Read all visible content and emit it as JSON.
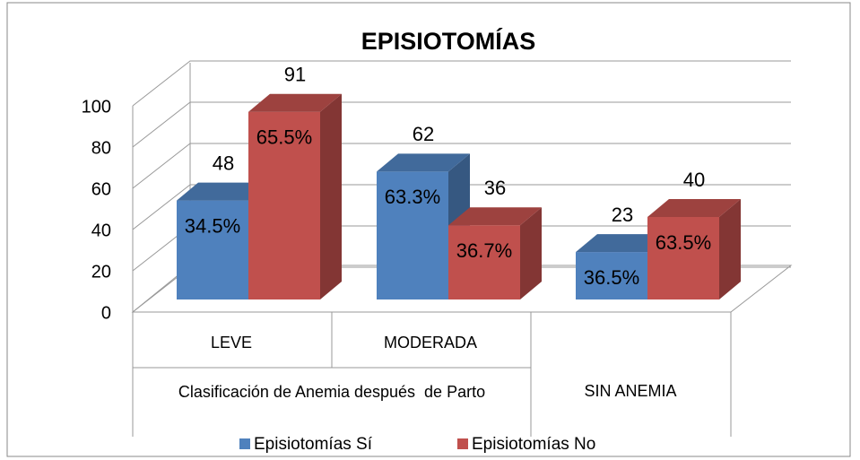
{
  "chart_data": {
    "type": "bar3d",
    "title": "EPISIOTOMÍAS",
    "categories": [
      "LEVE",
      "MODERADA",
      "SIN ANEMIA"
    ],
    "group_label": "Clasificación de Anemia después  de Parto",
    "series": [
      {
        "name": "Episiotomías Sí",
        "color": "#4f81bd",
        "values": [
          48,
          62,
          23
        ],
        "inside_labels": [
          "34.5%",
          "63.3%",
          "36.5%"
        ]
      },
      {
        "name": "Episiotomías No",
        "color": "#c0504d",
        "values": [
          91,
          36,
          40
        ],
        "inside_labels": [
          "65.5%",
          "36.7%",
          "63.5%"
        ]
      }
    ],
    "ylim": [
      0,
      100
    ],
    "yticks": [
      0,
      20,
      40,
      60,
      80,
      100
    ],
    "grid": true,
    "legend": "bottom"
  }
}
